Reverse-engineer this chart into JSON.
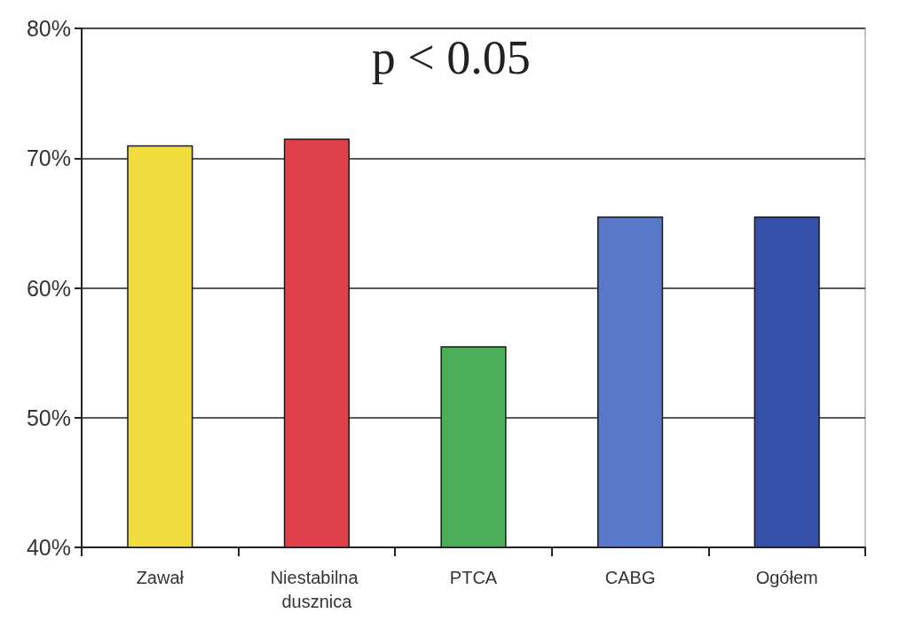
{
  "chart_data": {
    "type": "bar",
    "categories": [
      "Zawał",
      "Niestabilna dusznica",
      "PTCA",
      "CABG",
      "Ogółem"
    ],
    "values": [
      71,
      71.5,
      55.5,
      65.5,
      65.5
    ],
    "colors": [
      "#f0dc3c",
      "#e0404c",
      "#4cae58",
      "#5a78c8",
      "#3550a8"
    ],
    "ylim": [
      40,
      80
    ],
    "yticks": [
      {
        "value": 40,
        "label": "40%"
      },
      {
        "value": 50,
        "label": "50%"
      },
      {
        "value": 60,
        "label": "60%"
      },
      {
        "value": 70,
        "label": "70%"
      },
      {
        "value": 80,
        "label": "80%"
      }
    ],
    "grid": "y",
    "annotations": [
      "p < 0.05"
    ]
  }
}
